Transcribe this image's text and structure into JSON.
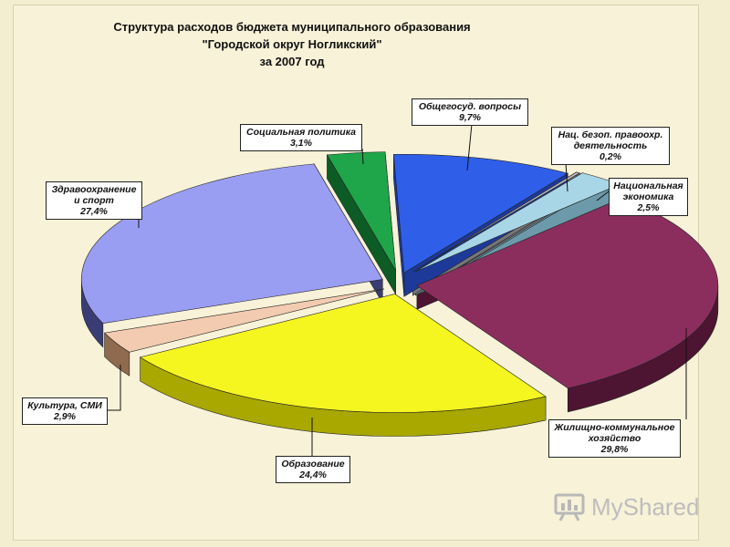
{
  "chart_data": {
    "type": "pie",
    "title_lines": [
      "Структура расходов бюджета муниципального образования",
      "\"Городской округ Ногликский\"",
      "за 2007 год"
    ],
    "slices": [
      {
        "label": "Общегосуд. вопросы",
        "label_lines": [
          "Общегосуд. вопросы"
        ],
        "value": 9.7,
        "value_text": "9,7%",
        "color": "#2f5fe8",
        "side": "#1d3a9a"
      },
      {
        "label": "Нац. безоп. правоохр. деятельность",
        "label_lines": [
          "Нац. безоп. правоохр.",
          "деятельность"
        ],
        "value": 0.2,
        "value_text": "0,2%",
        "color": "#bdbdbd",
        "side": "#777777"
      },
      {
        "label": "Национальная экономика",
        "label_lines": [
          "Национальная",
          "экономика"
        ],
        "value": 2.5,
        "value_text": "2,5%",
        "color": "#a9d6e6",
        "side": "#6d9aaa"
      },
      {
        "label": "Жилищно-коммунальное хозяйство",
        "label_lines": [
          "Жилищно-коммунальное",
          "хозяйство"
        ],
        "value": 29.8,
        "value_text": "29,8%",
        "color": "#8b2e5e",
        "side": "#4d1532"
      },
      {
        "label": "Образование",
        "label_lines": [
          "Образование"
        ],
        "value": 24.4,
        "value_text": "24,4%",
        "color": "#f5f520",
        "side": "#a8a800"
      },
      {
        "label": "Культура, СМИ",
        "label_lines": [
          "Культура, СМИ"
        ],
        "value": 2.9,
        "value_text": "2,9%",
        "color": "#f2cbb0",
        "side": "#8f6a4e"
      },
      {
        "label": "Здравоохранение и спорт",
        "label_lines": [
          "Здравоохранение",
          "и спорт"
        ],
        "value": 27.4,
        "value_text": "27,4%",
        "color": "#9a9ef2",
        "side": "#3a3d75"
      },
      {
        "label": "Социальная политика",
        "label_lines": [
          "Социальная политика"
        ],
        "value": 3.1,
        "value_text": "3,1%",
        "color": "#1fa64a",
        "side": "#0d5c25"
      }
    ]
  },
  "watermark": {
    "text": "MyShared"
  }
}
